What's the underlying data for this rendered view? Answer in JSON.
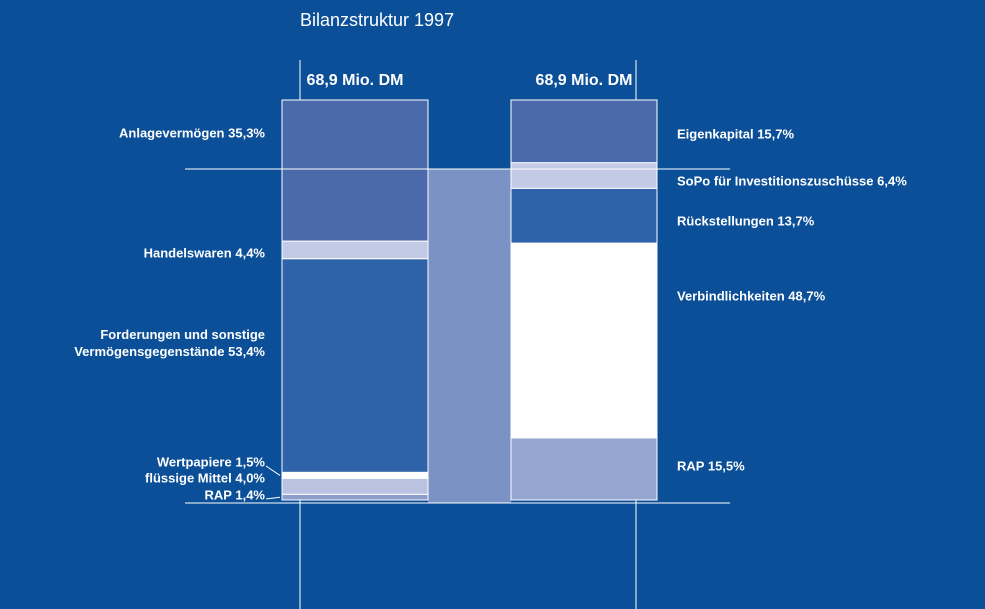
{
  "chart_data": {
    "type": "balance",
    "title": "Bilanzstruktur 1997",
    "columns": [
      {
        "total_label": "68,9 Mio. DM",
        "segments": [
          {
            "name": "Anlagevermögen",
            "value": 35.3,
            "value_label": "35,3%",
            "color": "#4a6aab"
          },
          {
            "name": "Handelswaren",
            "value": 4.4,
            "value_label": "4,4%",
            "color": "#c3cae6"
          },
          {
            "name": "Forderungen und sonstige Vermögensgegenstände",
            "value": 53.4,
            "value_label": "53,4%",
            "color": "#2f63a9"
          },
          {
            "name": "Wertpapiere",
            "value": 1.5,
            "value_label": "1,5%",
            "color": "#ffffff"
          },
          {
            "name": "flüssige Mittel",
            "value": 4.0,
            "value_label": "4,0%",
            "color": "#b9c2e1"
          },
          {
            "name": "RAP",
            "value": 1.4,
            "value_label": "1,4%",
            "color": "#8b9dcb"
          }
        ]
      },
      {
        "total_label": "68,9 Mio. DM",
        "segments": [
          {
            "name": "Eigenkapital",
            "value": 15.7,
            "value_label": "15,7%",
            "color": "#4a6aab"
          },
          {
            "name": "SoPo für Investitionszuschüsse",
            "value": 6.4,
            "value_label": "6,4%",
            "color": "#c3cae6"
          },
          {
            "name": "Rückstellungen",
            "value": 13.7,
            "value_label": "13,7%",
            "color": "#2f63a9"
          },
          {
            "name": "Verbindlichkeiten",
            "value": 48.7,
            "value_label": "48,7%",
            "color": "#ffffff"
          },
          {
            "name": "RAP",
            "value": 15.5,
            "value_label": "15,5%",
            "color": "#95a6d1"
          }
        ]
      }
    ]
  }
}
